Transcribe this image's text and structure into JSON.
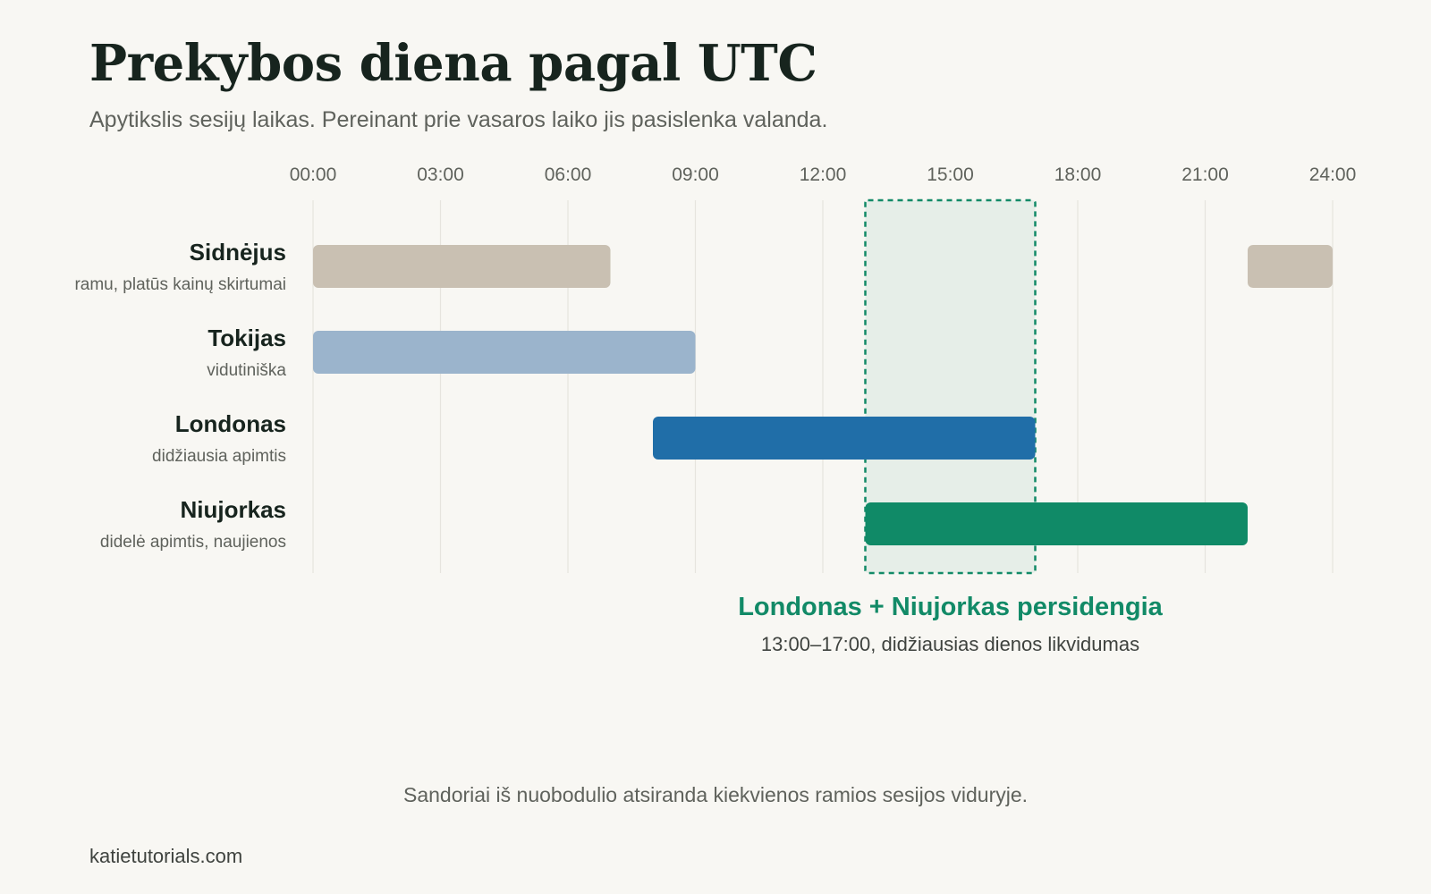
{
  "title": "Prekybos diena pagal UTC",
  "subtitle": "Apytikslis sesijų laikas. Pereinant prie vasaros laiko jis pasislenka valanda.",
  "chart_data": {
    "type": "bar",
    "orientation": "horizontal-range",
    "title": "Prekybos diena pagal UTC",
    "subtitle": "Apytikslis sesijų laikas. Pereinant prie vasaros laiko jis pasislenka valanda.",
    "xlabel": "",
    "ylabel": "",
    "xlim": [
      0,
      24
    ],
    "x_ticks": [
      "00:00",
      "03:00",
      "06:00",
      "09:00",
      "12:00",
      "15:00",
      "18:00",
      "21:00",
      "24:00"
    ],
    "x_tick_values": [
      0,
      3,
      6,
      9,
      12,
      15,
      18,
      21,
      24
    ],
    "grid": "vertical",
    "categories": [
      {
        "name": "Sidnėjus",
        "note": "ramu, platūs kainų skirtumai",
        "segments": [
          [
            0,
            7
          ],
          [
            22,
            24
          ]
        ],
        "color": "#c9c0b2"
      },
      {
        "name": "Tokijas",
        "note": "vidutiniška",
        "segments": [
          [
            0,
            9
          ]
        ],
        "color": "#9bb4cc"
      },
      {
        "name": "Londonas",
        "note": "didžiausia apimtis",
        "segments": [
          [
            8,
            17
          ]
        ],
        "color": "#206ea8"
      },
      {
        "name": "Niujorkas",
        "note": "didelė apimtis, naujienos",
        "segments": [
          [
            13,
            22
          ]
        ],
        "color": "#108a67"
      }
    ],
    "highlight": {
      "start": 13,
      "end": 17,
      "label": "Londonas + Niujorkas persidengia",
      "sublabel": "13:00–17:00, didžiausias dienos likvidumas",
      "color": "#128a67"
    }
  },
  "footnote": "Sandoriai iš nuobodulio atsiranda kiekvienos ramios sesijos viduryje.",
  "source": "katietutorials.com"
}
